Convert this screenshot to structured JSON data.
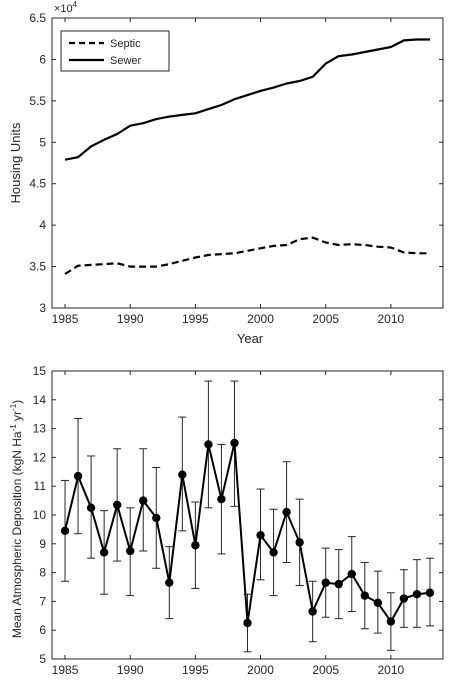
{
  "chart_data": [
    {
      "type": "line",
      "title": "",
      "xlabel": "Year",
      "ylabel": "Housing Units",
      "y_exponent_label": "×10",
      "y_exponent_power": "4",
      "xlim": [
        1984,
        2014
      ],
      "ylim": [
        3.0,
        6.5
      ],
      "x_ticks": [
        "1985",
        "1990",
        "1995",
        "2000",
        "2005",
        "2010"
      ],
      "y_ticks": [
        "3",
        "3.5",
        "4",
        "4.5",
        "5",
        "5.5",
        "6",
        "6.5"
      ],
      "grid": false,
      "legend_position": "top-left",
      "x": [
        1985,
        1986,
        1987,
        1988,
        1989,
        1990,
        1991,
        1992,
        1993,
        1994,
        1995,
        1996,
        1997,
        1998,
        1999,
        2000,
        2001,
        2002,
        2003,
        2004,
        2005,
        2006,
        2007,
        2008,
        2009,
        2010,
        2011,
        2012,
        2013
      ],
      "series": [
        {
          "name": "Septic",
          "style": "dashed",
          "values": [
            3.41,
            3.51,
            3.52,
            3.53,
            3.54,
            3.5,
            3.5,
            3.5,
            3.53,
            3.57,
            3.61,
            3.64,
            3.65,
            3.66,
            3.69,
            3.72,
            3.75,
            3.76,
            3.83,
            3.85,
            3.79,
            3.76,
            3.77,
            3.76,
            3.74,
            3.73,
            3.67,
            3.66,
            3.66
          ]
        },
        {
          "name": "Sewer",
          "style": "solid",
          "values": [
            4.79,
            4.82,
            4.95,
            5.03,
            5.1,
            5.2,
            5.23,
            5.28,
            5.31,
            5.33,
            5.35,
            5.4,
            5.45,
            5.52,
            5.57,
            5.62,
            5.66,
            5.71,
            5.74,
            5.79,
            5.95,
            6.04,
            6.06,
            6.09,
            6.12,
            6.15,
            6.23,
            6.24,
            6.24
          ]
        }
      ]
    },
    {
      "type": "line",
      "title": "",
      "xlabel": "",
      "ylabel": "Mean Atmospheric Deposition (kgN Ha",
      "ylabel_sup1": "-1",
      "ylabel_mid": " yr",
      "ylabel_sup2": "-1",
      "ylabel_end": ")",
      "xlim": [
        1984,
        2014
      ],
      "ylim": [
        5,
        15
      ],
      "x_ticks": [
        "1985",
        "1990",
        "1995",
        "2000",
        "2005",
        "2010"
      ],
      "y_ticks": [
        "5",
        "6",
        "7",
        "8",
        "9",
        "10",
        "11",
        "12",
        "13",
        "14",
        "15"
      ],
      "grid": false,
      "x": [
        1985,
        1986,
        1987,
        1988,
        1989,
        1990,
        1991,
        1992,
        1993,
        1994,
        1995,
        1996,
        1997,
        1998,
        1999,
        2000,
        2001,
        2002,
        2003,
        2004,
        2005,
        2006,
        2007,
        2008,
        2009,
        2010,
        2011,
        2012,
        2013
      ],
      "series": [
        {
          "name": "",
          "values": [
            9.45,
            11.35,
            10.25,
            8.7,
            10.35,
            8.75,
            10.5,
            9.9,
            7.65,
            11.4,
            8.95,
            12.45,
            10.55,
            12.5,
            6.25,
            9.3,
            8.7,
            10.1,
            9.05,
            6.65,
            7.65,
            7.6,
            7.95,
            7.2,
            6.95,
            6.3,
            7.1,
            7.25,
            7.3
          ],
          "error_low": [
            7.7,
            9.35,
            8.5,
            7.25,
            8.4,
            7.2,
            8.75,
            8.15,
            6.4,
            9.45,
            7.45,
            10.25,
            8.65,
            10.3,
            5.25,
            7.75,
            7.2,
            8.35,
            7.55,
            5.6,
            6.45,
            6.4,
            6.65,
            6.05,
            5.9,
            5.3,
            6.1,
            6.1,
            6.15
          ],
          "error_high": [
            11.2,
            13.35,
            12.05,
            10.15,
            12.3,
            10.25,
            12.3,
            11.65,
            8.9,
            13.4,
            10.45,
            14.65,
            12.45,
            14.65,
            7.25,
            10.9,
            10.2,
            11.85,
            10.55,
            7.7,
            8.85,
            8.8,
            9.25,
            8.35,
            8.05,
            7.3,
            8.1,
            8.45,
            8.5
          ]
        }
      ]
    }
  ]
}
